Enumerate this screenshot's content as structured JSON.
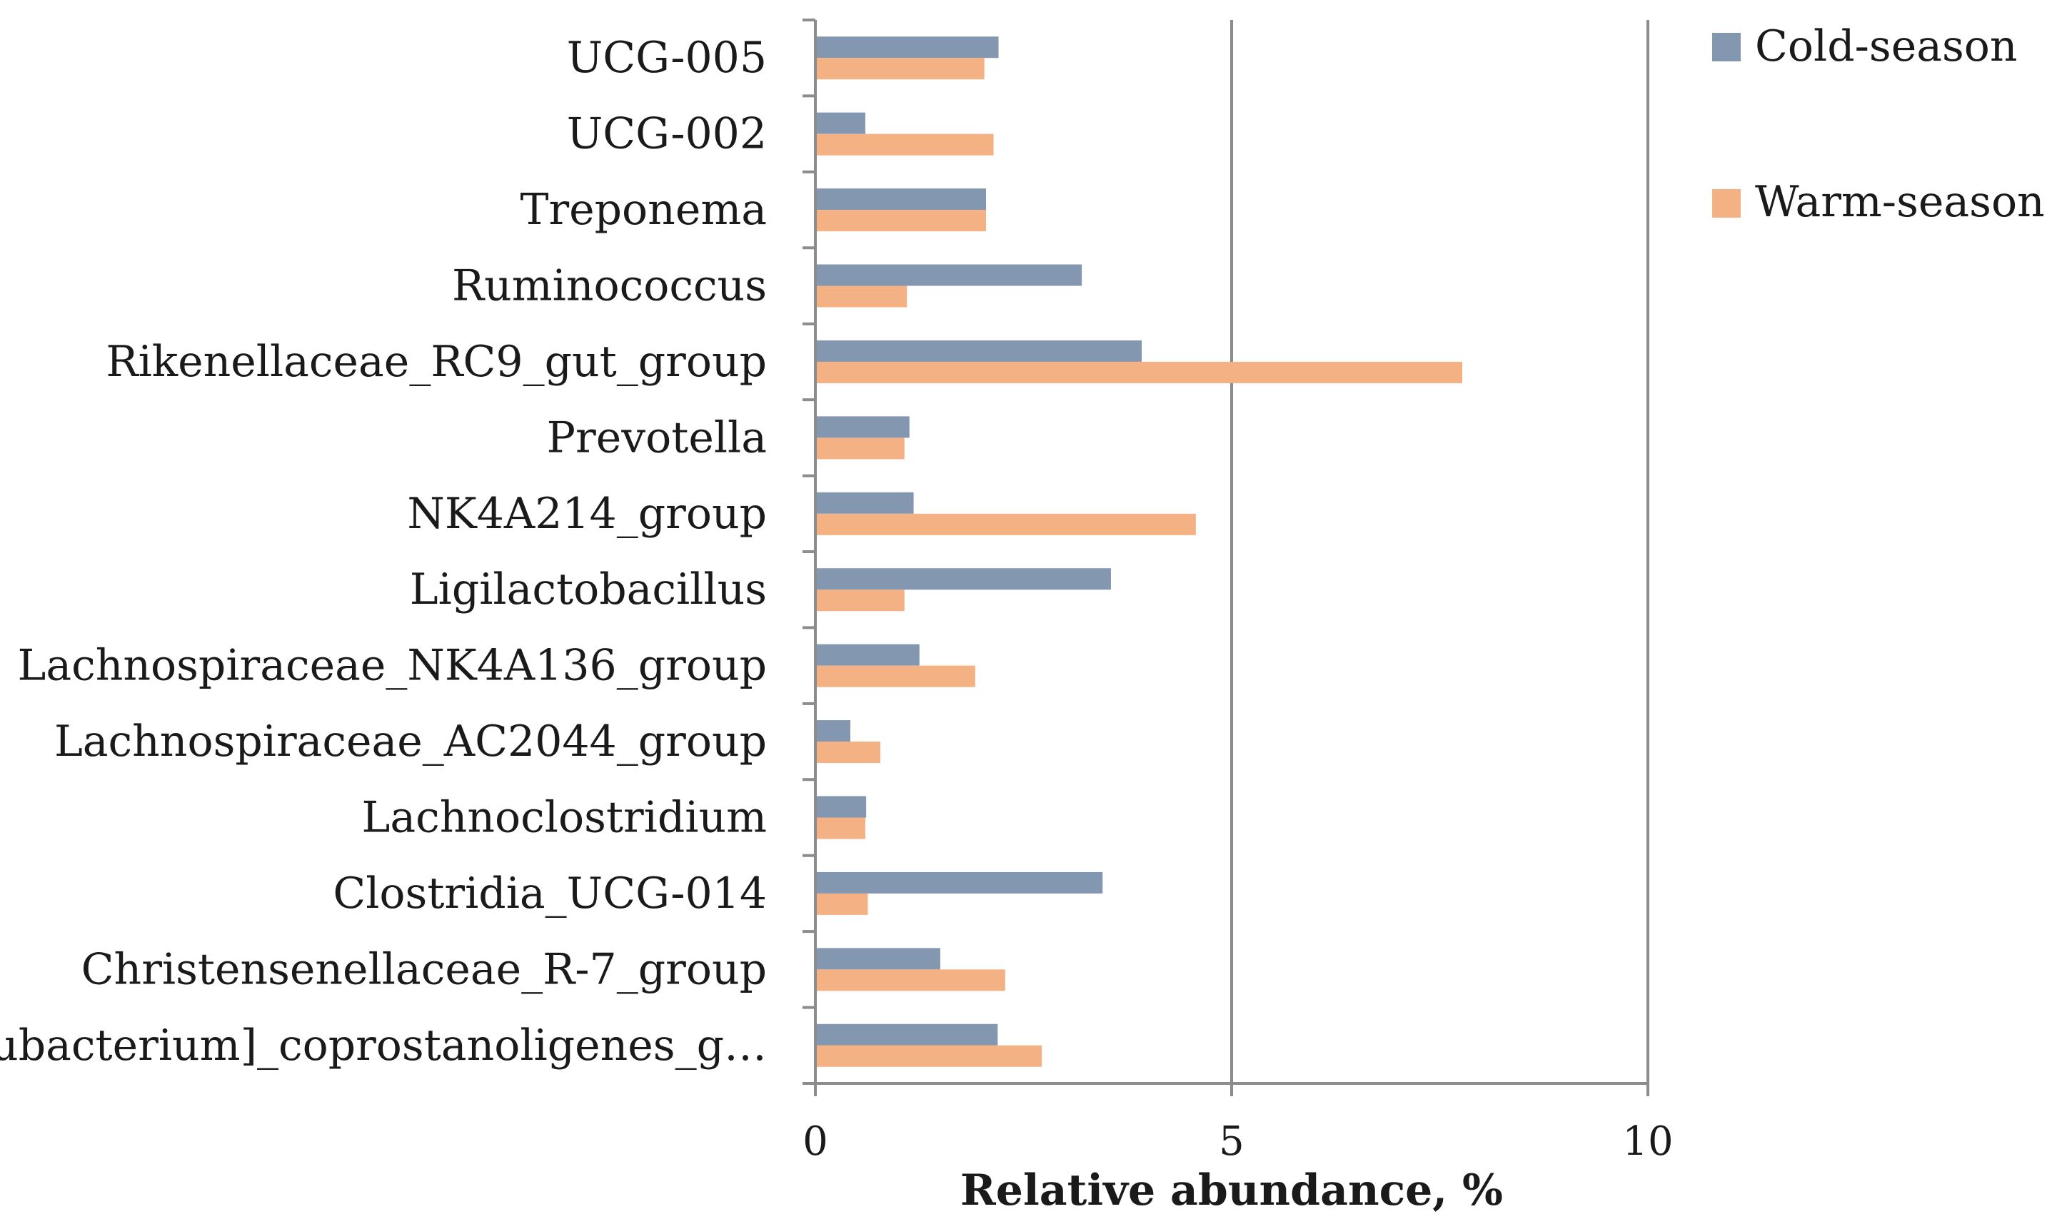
{
  "chart_data": {
    "type": "bar",
    "orientation": "horizontal",
    "categories": [
      "UCG-005",
      "UCG-002",
      "Treponema",
      "Ruminococcus",
      "Rikenellaceae_RC9_gut_group",
      "Prevotella",
      "NK4A214_group",
      "Ligilactobacillus",
      "Lachnospiraceae_NK4A136_group",
      "Lachnospiraceae_AC2044_group",
      "Lachnoclostridium",
      "Clostridia_UCG-014",
      "Christensenellaceae_R-7_group",
      "[Eubacterium]_coprostanoligenes_g…"
    ],
    "series": [
      {
        "name": "Cold-season",
        "color": "#8497b0",
        "values": [
          2.2,
          0.6,
          2.05,
          3.2,
          3.92,
          1.13,
          1.18,
          3.55,
          1.25,
          0.42,
          0.61,
          3.45,
          1.5,
          2.19
        ]
      },
      {
        "name": "Warm-season",
        "color": "#f4b183",
        "values": [
          2.03,
          2.14,
          2.05,
          1.1,
          7.77,
          1.07,
          4.57,
          1.07,
          1.92,
          0.78,
          0.6,
          0.63,
          2.28,
          2.72
        ]
      }
    ],
    "xlim": [
      0,
      10
    ],
    "xticks": [
      "0",
      "5",
      "10"
    ],
    "xlabel": "Relative abundance, %",
    "ylabel": "",
    "title": "",
    "grid": "vertical major gridlines",
    "legend_position": "top-right"
  }
}
